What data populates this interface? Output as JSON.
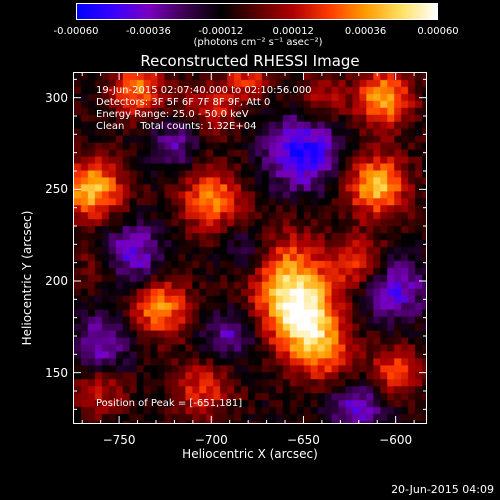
{
  "colorbar": {
    "tick_labels": [
      "-0.00060",
      "-0.00036",
      "-0.00012",
      "0.00012",
      "0.00036",
      "0.00060"
    ],
    "min": -0.0006,
    "max": 0.0006,
    "units": "(photons cm⁻² s⁻¹ asec⁻²)",
    "stops": [
      "#0000ff",
      "#3a00ff",
      "#7a00c0",
      "#3c0050",
      "#000000",
      "#5a0000",
      "#b00000",
      "#ff3a00",
      "#ff9a00",
      "#ffe060",
      "#ffffff"
    ]
  },
  "title": "Reconstructed RHESSI Image",
  "overlay": {
    "line1": "19-Jun-2015 02:07:40.000 to 02:10:56.000",
    "line2": "Detectors: 3F 5F 6F 7F 8F 9F, Att 0",
    "line3": "Energy Range: 25.0 - 50.0 keV",
    "line4": "Clean     Total counts: 1.32E+04"
  },
  "peak_text": "Position of Peak = [-651,181]",
  "x_axis": {
    "label": "Heliocentric X (arcsec)",
    "range": [
      -775,
      -583
    ],
    "ticks": [
      -750,
      -700,
      -650,
      -600
    ]
  },
  "y_axis": {
    "label": "Heliocentric Y (arcsec)",
    "range": [
      122,
      314
    ],
    "ticks": [
      150,
      200,
      250,
      300
    ]
  },
  "timestamp": "20-Jun-2015 04:09",
  "image": {
    "blobs": [
      {
        "x": -651,
        "y": 181,
        "amp": 1.0,
        "sigma": 14
      },
      {
        "x": -660,
        "y": 205,
        "amp": 0.65,
        "sigma": 16
      },
      {
        "x": -640,
        "y": 160,
        "amp": 0.55,
        "sigma": 12
      },
      {
        "x": -728,
        "y": 185,
        "amp": 0.75,
        "sigma": 11
      },
      {
        "x": -765,
        "y": 250,
        "amp": 0.85,
        "sigma": 12
      },
      {
        "x": -700,
        "y": 245,
        "amp": 0.7,
        "sigma": 12
      },
      {
        "x": -610,
        "y": 252,
        "amp": 0.85,
        "sigma": 12
      },
      {
        "x": -606,
        "y": 300,
        "amp": 0.8,
        "sigma": 11
      },
      {
        "x": -740,
        "y": 305,
        "amp": 0.65,
        "sigma": 11
      },
      {
        "x": -700,
        "y": 295,
        "amp": 0.45,
        "sigma": 10
      },
      {
        "x": -705,
        "y": 140,
        "amp": 0.5,
        "sigma": 11
      },
      {
        "x": -600,
        "y": 150,
        "amp": 0.55,
        "sigma": 10
      },
      {
        "x": -680,
        "y": 312,
        "amp": 0.45,
        "sigma": 9
      },
      {
        "x": -640,
        "y": 300,
        "amp": 0.4,
        "sigma": 9
      },
      {
        "x": -620,
        "y": 210,
        "amp": 0.5,
        "sigma": 10
      },
      {
        "x": -760,
        "y": 140,
        "amp": 0.4,
        "sigma": 10
      },
      {
        "x": -760,
        "y": 210,
        "amp": 0.35,
        "sigma": 9
      }
    ],
    "troughs": [
      {
        "x": -650,
        "y": 270,
        "amp": -0.75,
        "sigma": 14
      },
      {
        "x": -745,
        "y": 215,
        "amp": -0.6,
        "sigma": 12
      },
      {
        "x": -600,
        "y": 195,
        "amp": -0.55,
        "sigma": 12
      },
      {
        "x": -620,
        "y": 130,
        "amp": -0.5,
        "sigma": 11
      },
      {
        "x": -690,
        "y": 170,
        "amp": -0.45,
        "sigma": 10
      },
      {
        "x": -760,
        "y": 165,
        "amp": -0.5,
        "sigma": 11
      },
      {
        "x": -680,
        "y": 215,
        "amp": -0.4,
        "sigma": 10
      },
      {
        "x": -720,
        "y": 275,
        "amp": -0.4,
        "sigma": 10
      }
    ]
  }
}
